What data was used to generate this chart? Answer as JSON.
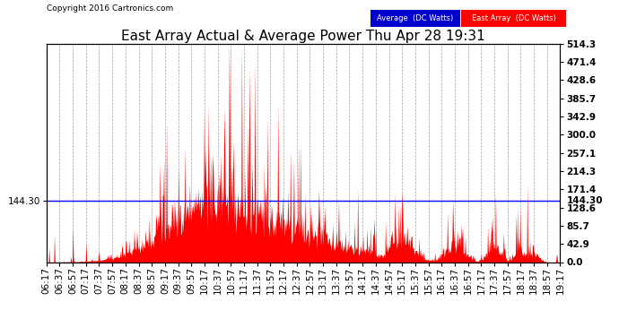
{
  "title": "East Array Actual & Average Power Thu Apr 28 19:31",
  "copyright": "Copyright 2016 Cartronics.com",
  "average_value": 144.3,
  "y_max": 514.3,
  "y_min": 0.0,
  "y_ticks_right": [
    0.0,
    42.9,
    85.7,
    128.6,
    171.4,
    214.3,
    257.1,
    300.0,
    342.9,
    385.7,
    428.6,
    471.4,
    514.3
  ],
  "x_tick_labels": [
    "06:17",
    "06:37",
    "06:57",
    "07:17",
    "07:37",
    "07:57",
    "08:17",
    "08:37",
    "08:57",
    "09:17",
    "09:37",
    "09:57",
    "10:17",
    "10:37",
    "10:57",
    "11:17",
    "11:37",
    "11:57",
    "12:17",
    "12:37",
    "12:57",
    "13:17",
    "13:37",
    "13:57",
    "14:17",
    "14:37",
    "14:57",
    "15:17",
    "15:37",
    "15:57",
    "16:17",
    "16:37",
    "16:57",
    "17:17",
    "17:37",
    "17:57",
    "18:17",
    "18:37",
    "18:57",
    "19:17"
  ],
  "bg_color": "#ffffff",
  "plot_bg_color": "#ffffff",
  "grid_color": "#888888",
  "area_color": "#ff0000",
  "line_color": "#0000ff",
  "legend_avg_text": "Average  (DC Watts)",
  "legend_east_text": "East Array  (DC Watts)",
  "title_fontsize": 11,
  "tick_fontsize": 7.5,
  "copyright_fontsize": 6.5
}
